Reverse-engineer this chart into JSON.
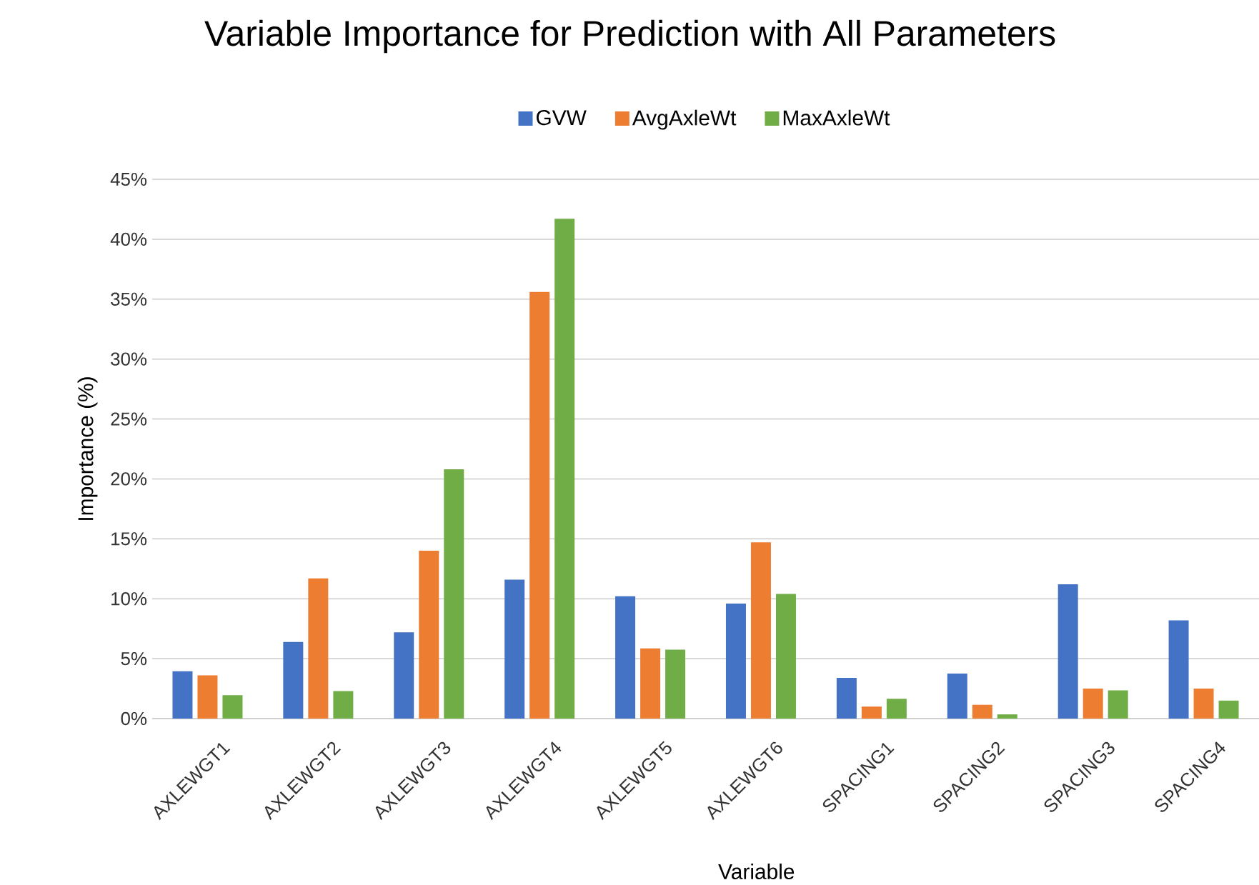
{
  "chart_data": {
    "type": "bar",
    "title": "Variable Importance for Prediction with All Parameters",
    "xlabel": "Variable",
    "ylabel": "Importance (%)",
    "categories": [
      "AXLEWGT1",
      "AXLEWGT2",
      "AXLEWGT3",
      "AXLEWGT4",
      "AXLEWGT5",
      "AXLEWGT6",
      "SPACING1",
      "SPACING2",
      "SPACING3",
      "SPACING4"
    ],
    "series": [
      {
        "name": "GVW",
        "color": "#4472c4",
        "values": [
          3.95,
          6.4,
          7.2,
          11.6,
          10.2,
          9.6,
          3.4,
          3.75,
          11.2,
          8.2
        ]
      },
      {
        "name": "AvgAxleWt",
        "color": "#ed7d31",
        "values": [
          3.6,
          11.7,
          14.0,
          35.6,
          5.85,
          14.7,
          1.0,
          1.15,
          2.5,
          2.5
        ]
      },
      {
        "name": "MaxAxleWt",
        "color": "#70ad47",
        "values": [
          1.95,
          2.3,
          20.8,
          41.7,
          5.75,
          10.4,
          1.65,
          0.35,
          2.35,
          1.5
        ]
      }
    ],
    "ylim": [
      0,
      45
    ],
    "yticks": [
      {
        "value": 0,
        "label": "0%"
      },
      {
        "value": 5,
        "label": "5%"
      },
      {
        "value": 10,
        "label": "10%"
      },
      {
        "value": 15,
        "label": "15%"
      },
      {
        "value": 20,
        "label": "20%"
      },
      {
        "value": 25,
        "label": "25%"
      },
      {
        "value": 30,
        "label": "30%"
      },
      {
        "value": 35,
        "label": "35%"
      },
      {
        "value": 40,
        "label": "40%"
      },
      {
        "value": 45,
        "label": "45%"
      }
    ],
    "grid": "y",
    "legend": "top"
  }
}
